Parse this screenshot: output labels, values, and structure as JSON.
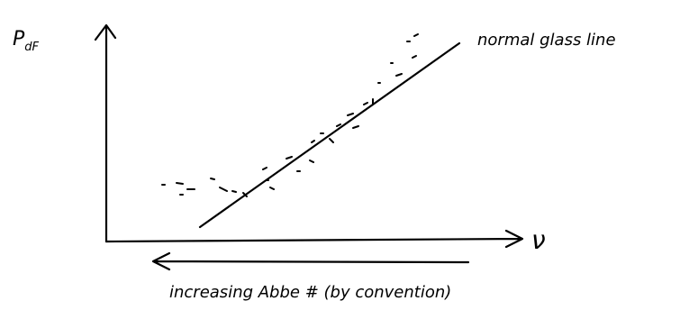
{
  "y_axis_label": {
    "symbol": "P",
    "subscript": "dF"
  },
  "x_axis_label": "ν",
  "line_label": "normal glass line",
  "bottom_label": "increasing Abbe # (by convention)"
}
